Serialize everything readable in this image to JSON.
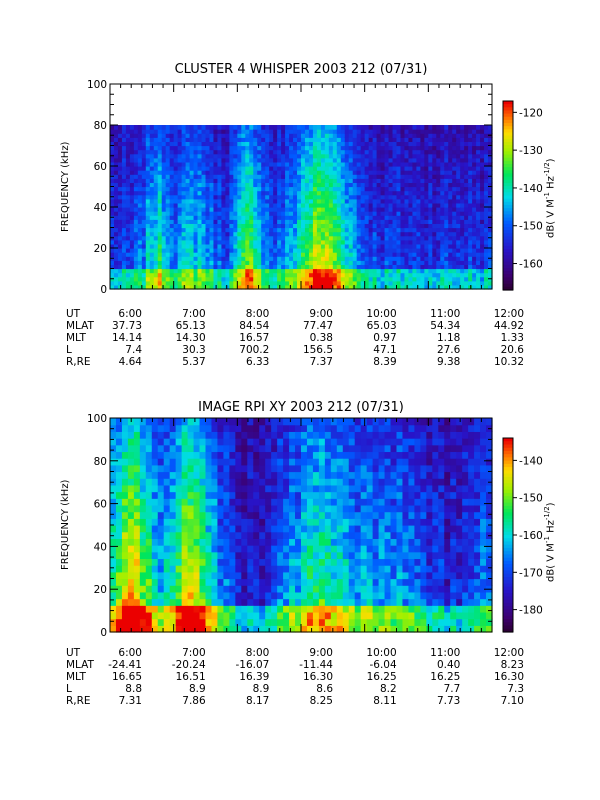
{
  "chart_data": [
    {
      "type": "heatmap",
      "title": "CLUSTER 4 WHISPER 2003 212 (07/31)",
      "ylabel": "FREQUENCY (kHz)",
      "colorbar_label": "dB( V M⁻¹ Hz⁻¹ᐟ²)",
      "colorbar_label_parts": [
        "dB( V M",
        "-1",
        " Hz",
        "-1/2",
        ")"
      ],
      "ylim": [
        0,
        100
      ],
      "y_ticks": [
        "0",
        "20",
        "40",
        "60",
        "80",
        "100"
      ],
      "y_tick_values": [
        0,
        20,
        40,
        60,
        80,
        100
      ],
      "data_top_khz": 80,
      "colorbar_range": [
        -167,
        -117
      ],
      "colorbar_ticks": [
        "-120",
        "-130",
        "-140",
        "-150",
        "-160"
      ],
      "colorbar_tick_values": [
        -120,
        -130,
        -140,
        -150,
        -160
      ],
      "x_ticks": [
        "6:00",
        "7:00",
        "8:00",
        "9:00",
        "10:00",
        "11:00",
        "12:00"
      ],
      "ephemeris": [
        {
          "label": "UT",
          "values": [
            "6:00",
            "7:00",
            "8:00",
            "9:00",
            "10:00",
            "11:00",
            "12:00"
          ]
        },
        {
          "label": "MLAT",
          "values": [
            "37.73",
            "65.13",
            "84.54",
            "77.47",
            "65.03",
            "54.34",
            "44.92"
          ]
        },
        {
          "label": "MLT",
          "values": [
            "14.14",
            "14.30",
            "16.57",
            "0.38",
            "0.97",
            "1.18",
            "1.33"
          ]
        },
        {
          "label": "L",
          "values": [
            "7.4",
            "30.3",
            "700.2",
            "156.5",
            "47.1",
            "27.6",
            "20.6"
          ]
        },
        {
          "label": "R,RE",
          "values": [
            "4.64",
            "5.37",
            "6.33",
            "7.37",
            "8.39",
            "9.38",
            "10.32"
          ]
        }
      ]
    },
    {
      "type": "heatmap",
      "title": "IMAGE RPI XY 2003 212 (07/31)",
      "ylabel": "FREQUENCY (kHz)",
      "colorbar_label_parts": [
        "dB( V M",
        "-1",
        " Hz",
        "-1/2",
        ")"
      ],
      "ylim": [
        0,
        100
      ],
      "y_ticks": [
        "0",
        "20",
        "40",
        "60",
        "80",
        "100"
      ],
      "y_tick_values": [
        0,
        20,
        40,
        60,
        80,
        100
      ],
      "colorbar_range": [
        -186,
        -134
      ],
      "colorbar_ticks": [
        "-140",
        "-150",
        "-160",
        "-170",
        "-180"
      ],
      "colorbar_tick_values": [
        -140,
        -150,
        -160,
        -170,
        -180
      ],
      "x_ticks": [
        "6:00",
        "7:00",
        "8:00",
        "9:00",
        "10:00",
        "11:00",
        "12:00"
      ],
      "ephemeris": [
        {
          "label": "UT",
          "values": [
            "6:00",
            "7:00",
            "8:00",
            "9:00",
            "10:00",
            "11:00",
            "12:00"
          ]
        },
        {
          "label": "MLAT",
          "values": [
            "-24.41",
            "-20.24",
            "-16.07",
            "-11.44",
            "-6.04",
            "0.40",
            "8.23"
          ]
        },
        {
          "label": "MLT",
          "values": [
            "16.65",
            "16.51",
            "16.39",
            "16.30",
            "16.25",
            "16.25",
            "16.30"
          ]
        },
        {
          "label": "L",
          "values": [
            "8.8",
            "8.9",
            "8.9",
            "8.6",
            "8.2",
            "7.7",
            "7.3"
          ]
        },
        {
          "label": "R,RE",
          "values": [
            "7.31",
            "7.86",
            "8.17",
            "8.25",
            "8.11",
            "7.73",
            "7.10"
          ]
        }
      ]
    }
  ]
}
